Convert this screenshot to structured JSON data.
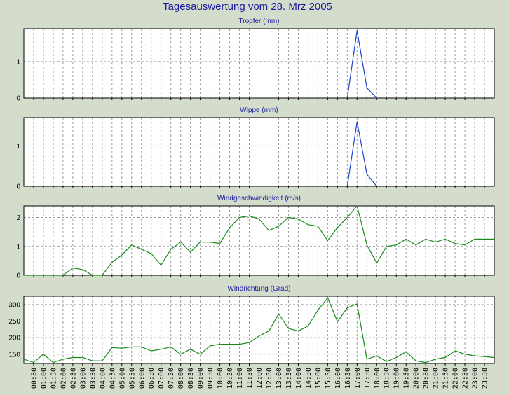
{
  "title": "Tagesauswertung vom 28. Mrz 2005",
  "colors": {
    "background": "#d4dccc",
    "plot_background": "#ffffff",
    "grid": "#9a9a9a",
    "series_blue": "#1f3fd0",
    "series_green": "#1a8a1a",
    "title_color": "#1a1aa0"
  },
  "x_ticks": [
    "00:30",
    "01:00",
    "01:30",
    "02:00",
    "02:30",
    "03:00",
    "03:30",
    "04:00",
    "04:30",
    "05:00",
    "05:30",
    "06:00",
    "06:30",
    "07:00",
    "07:30",
    "08:00",
    "08:30",
    "09:00",
    "09:30",
    "10:00",
    "10:30",
    "11:00",
    "11:30",
    "12:00",
    "12:30",
    "13:00",
    "13:30",
    "14:00",
    "14:30",
    "15:00",
    "15:30",
    "16:00",
    "16:30",
    "17:00",
    "17:30",
    "18:00",
    "18:30",
    "19:00",
    "19:30",
    "20:00",
    "20:30",
    "21:00",
    "21:30",
    "22:00",
    "22:30",
    "23:00",
    "23:30"
  ],
  "chart_data": [
    {
      "type": "line",
      "title": "Tropfer (mm)",
      "ylim": [
        0,
        1.9
      ],
      "yticks": [
        0,
        1
      ],
      "grid": true,
      "color": "#1f3fd0",
      "x": [
        "16:30",
        "17:00",
        "17:30",
        "18:00"
      ],
      "values": [
        0,
        1.85,
        0.28,
        0
      ]
    },
    {
      "type": "line",
      "title": "Wippe (mm)",
      "ylim": [
        0,
        1.7
      ],
      "yticks": [
        0,
        1
      ],
      "grid": true,
      "color": "#1f3fd0",
      "x": [
        "16:30",
        "17:00",
        "17:30",
        "18:00"
      ],
      "values": [
        0,
        1.6,
        0.3,
        0
      ]
    },
    {
      "type": "line",
      "title": "Windgeschwindigkeit (m/s)",
      "ylim": [
        0,
        2.4
      ],
      "yticks": [
        0,
        1,
        2
      ],
      "grid": true,
      "color": "#1a8a1a",
      "x": [
        "00:00",
        "00:30",
        "01:00",
        "01:30",
        "02:00",
        "02:30",
        "03:00",
        "03:30",
        "04:00",
        "04:30",
        "05:00",
        "05:30",
        "06:00",
        "06:30",
        "07:00",
        "07:30",
        "08:00",
        "08:30",
        "09:00",
        "09:30",
        "10:00",
        "10:30",
        "11:00",
        "11:30",
        "12:00",
        "12:30",
        "13:00",
        "13:30",
        "14:00",
        "14:30",
        "15:00",
        "15:30",
        "16:00",
        "16:30",
        "17:00",
        "17:30",
        "18:00",
        "18:30",
        "19:00",
        "19:30",
        "20:00",
        "20:30",
        "21:00",
        "21:30",
        "22:00",
        "22:30",
        "23:00",
        "23:30",
        "24:00"
      ],
      "values": [
        0,
        0,
        0,
        0,
        0,
        0.25,
        0.2,
        0,
        0,
        0.45,
        0.7,
        1.05,
        0.9,
        0.75,
        0.35,
        0.9,
        1.15,
        0.8,
        1.15,
        1.15,
        1.1,
        1.65,
        2.0,
        2.05,
        1.95,
        1.55,
        1.7,
        2.0,
        1.95,
        1.75,
        1.7,
        1.2,
        1.65,
        2.0,
        2.4,
        1.05,
        0.42,
        1.0,
        1.05,
        1.25,
        1.05,
        1.25,
        1.15,
        1.25,
        1.1,
        1.05,
        1.25,
        1.25,
        1.25
      ]
    },
    {
      "type": "line",
      "title": "Windrichtung (Grad)",
      "ylim": [
        122,
        325
      ],
      "yticks": [
        150,
        200,
        250,
        300
      ],
      "grid": true,
      "color": "#1a8a1a",
      "x": [
        "00:00",
        "00:30",
        "01:00",
        "01:30",
        "02:00",
        "02:30",
        "03:00",
        "03:30",
        "04:00",
        "04:30",
        "05:00",
        "05:30",
        "06:00",
        "06:30",
        "07:00",
        "07:30",
        "08:00",
        "08:30",
        "09:00",
        "09:30",
        "10:00",
        "10:30",
        "11:00",
        "11:30",
        "12:00",
        "12:30",
        "13:00",
        "13:30",
        "14:00",
        "14:30",
        "15:00",
        "15:30",
        "16:00",
        "16:30",
        "17:00",
        "17:30",
        "18:00",
        "18:30",
        "19:00",
        "19:30",
        "20:00",
        "20:30",
        "21:00",
        "21:30",
        "22:00",
        "22:30",
        "23:00",
        "23:30",
        "24:00"
      ],
      "values": [
        135,
        125,
        150,
        125,
        135,
        140,
        140,
        130,
        130,
        170,
        168,
        172,
        172,
        160,
        165,
        172,
        150,
        165,
        150,
        175,
        180,
        180,
        180,
        185,
        205,
        220,
        272,
        228,
        220,
        235,
        283,
        320,
        248,
        290,
        302,
        135,
        145,
        128,
        140,
        157,
        130,
        125,
        135,
        140,
        160,
        150,
        145,
        143,
        140
      ]
    }
  ]
}
